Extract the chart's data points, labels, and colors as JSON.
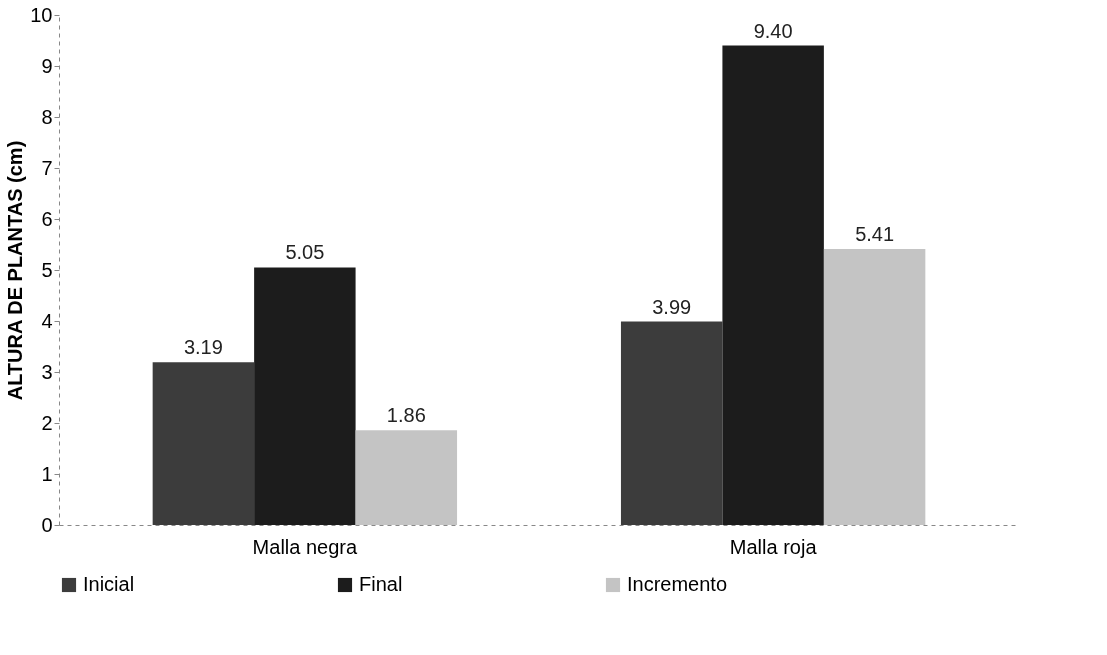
{
  "chart_data": {
    "type": "bar",
    "ylabel": "ALTURA DE PLANTAS (cm)",
    "categories": [
      "Malla negra",
      "Malla roja"
    ],
    "series": [
      {
        "name": "Inicial",
        "color": "#3c3c3c",
        "values": [
          3.19,
          3.99
        ],
        "value_labels": [
          "3.19",
          "3.99"
        ]
      },
      {
        "name": "Final",
        "color": "#1c1c1c",
        "values": [
          5.05,
          9.4
        ],
        "value_labels": [
          "5.05",
          "9.40"
        ]
      },
      {
        "name": "Incremento",
        "color": "#c4c4c4",
        "values": [
          1.86,
          5.41
        ],
        "value_labels": [
          "1.86",
          "5.41"
        ]
      }
    ],
    "ylim": [
      0,
      10
    ],
    "yticks": [
      0,
      1,
      2,
      3,
      4,
      5,
      6,
      7,
      8,
      9,
      10
    ],
    "legend": "bottom",
    "grid": false
  }
}
